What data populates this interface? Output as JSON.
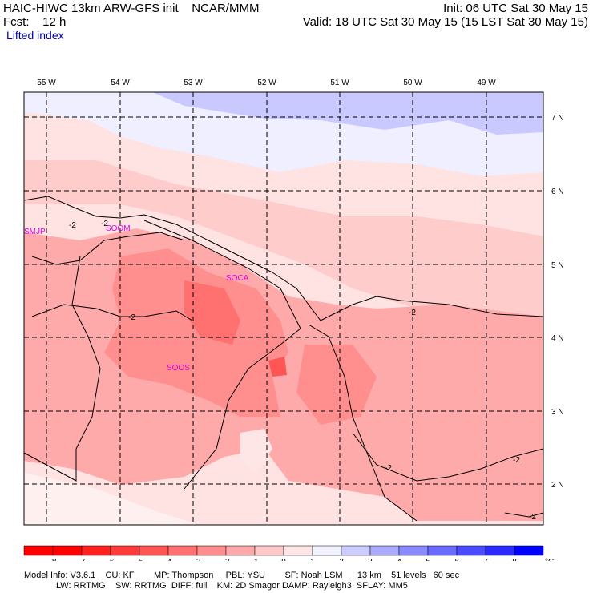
{
  "header": {
    "line1_left": "HAIC-HIWC 13km ARW-GFS init    NCAR/MMM",
    "line1_right": "Init: 06 UTC Sat 30 May 15",
    "line2_left": "Fcst:    12 h",
    "line2_right": "Valid: 18 UTC Sat 30 May 15 (15 LST Sat 30 May 15)",
    "field": "Lifted index"
  },
  "map": {
    "lon_labels": [
      "55 W",
      "54 W",
      "53 W",
      "52 W",
      "51 W",
      "50 W",
      "49 W"
    ],
    "lat_labels": [
      "7 N",
      "6 N",
      "5 N",
      "4 N",
      "3 N",
      "2 N"
    ],
    "stations": [
      "SMJP",
      "SOOM",
      "SOCA",
      "SOOS"
    ],
    "contour_labels": [
      "-2",
      "-2",
      "-2",
      "-2",
      "-2",
      "-2",
      "-2"
    ]
  },
  "colorbar": {
    "ticks": [
      "-8",
      "-7",
      "-6",
      "-5",
      "-4",
      "-3",
      "-2",
      "-1",
      "0",
      "1",
      "2",
      "3",
      "4",
      "5",
      "6",
      "7",
      "8"
    ],
    "unit": "°C",
    "colors": [
      "#ff0000",
      "#ff2020",
      "#ff3a3a",
      "#ff5555",
      "#ff7070",
      "#ff8e8e",
      "#ffaaaa",
      "#ffc8c8",
      "#ffe6e6",
      "#f2f2ff",
      "#ccccff",
      "#aaaaff",
      "#8a8aff",
      "#6a6aff",
      "#4a4aff",
      "#2a2aff",
      "#0000ff"
    ]
  },
  "footer": {
    "line1": "Model Info: V3.6.1    CU: KF        MP: Thompson     PBL: YSU        SF: Noah LSM      13 km    51 levels   60 sec",
    "line2": "LW: RRTMG    SW: RRTMG  DIFF: full    KM: 2D Smagor DAMP: Rayleigh3  SFLAY: MM5"
  }
}
